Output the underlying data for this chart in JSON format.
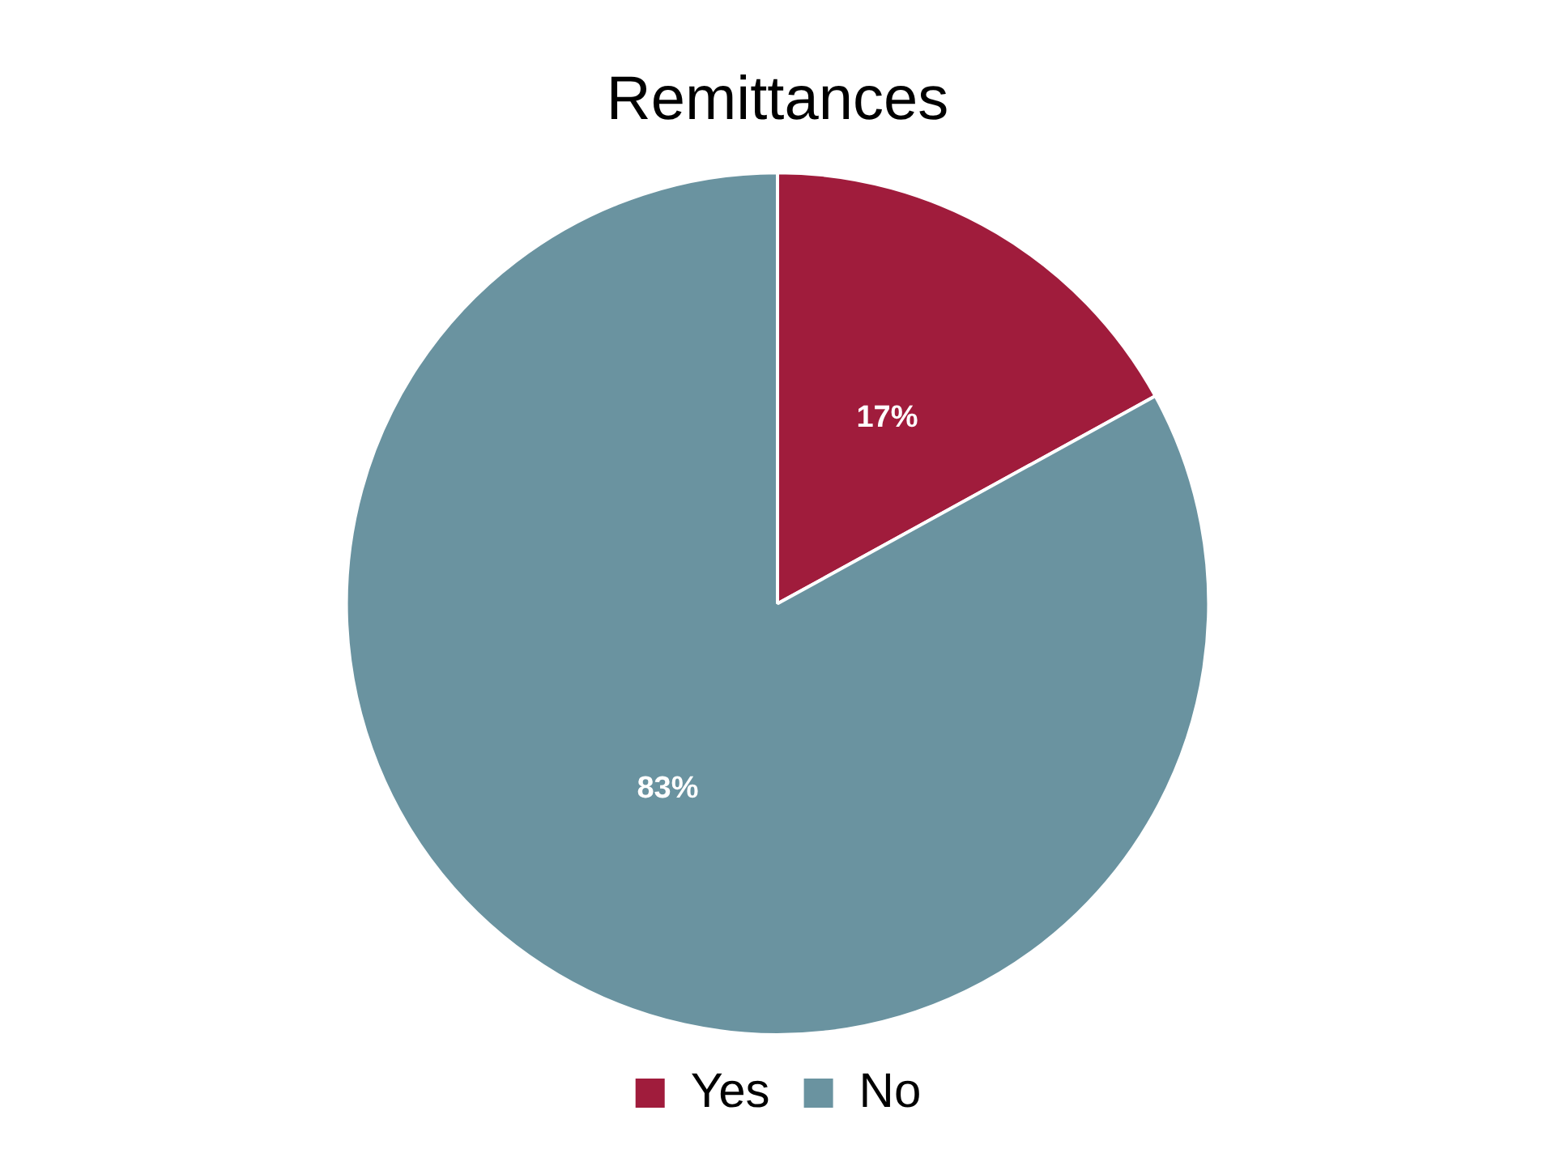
{
  "chart_data": {
    "type": "pie",
    "title": "Remittances",
    "categories": [
      "Yes",
      "No"
    ],
    "values": [
      17,
      83
    ],
    "colors": [
      "#a01c3c",
      "#6a93a0"
    ],
    "value_labels": [
      "17%",
      "83%"
    ],
    "legend": "bottom"
  }
}
